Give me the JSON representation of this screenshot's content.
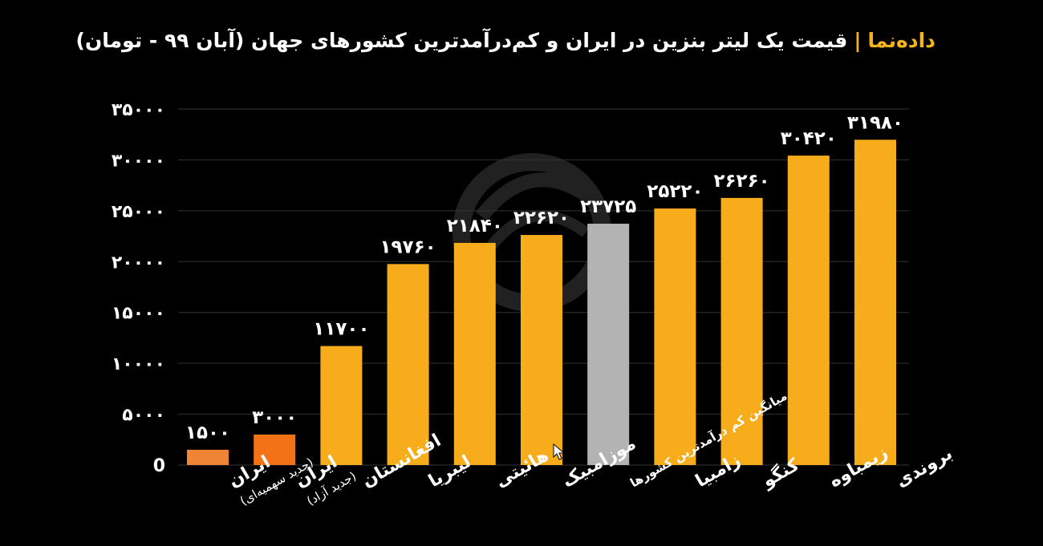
{
  "header": {
    "brand": "داده‌نما",
    "separator": "|",
    "title": "قیمت یک لیتر بنزین در ایران و کم‌درآمدترین کشورهای جهان (آبان ۹۹ - تومان)"
  },
  "watermark": {
    "icon": "logo-watermark-icon"
  },
  "colors": {
    "background": "#000000",
    "bar_main": "#f7ad1b",
    "bar_average": "#b3b3b3",
    "bar_iran_free": "#f47216",
    "bar_iran_quota": "#ef8437",
    "grid": "#333333",
    "brand": "#f4b41a"
  },
  "chart_data": {
    "type": "bar",
    "title": "قیمت یک لیتر بنزین در ایران و کم‌درآمدترین کشورهای جهان (آبان ۹۹ - تومان)",
    "xlabel": "",
    "ylabel": "",
    "ylim": [
      0,
      35000
    ],
    "grid": true,
    "yticks": [
      0,
      5000,
      10000,
      15000,
      20000,
      25000,
      30000,
      35000
    ],
    "ytick_labels": [
      "0",
      "۵۰۰۰",
      "۱۰۰۰۰",
      "۱۵۰۰۰",
      "۲۰۰۰۰",
      "۲۵۰۰۰",
      "۳۰۰۰۰",
      "۳۵۰۰۰"
    ],
    "categories": [
      {
        "name": "ایران",
        "sub": "(جدید سهمیه‌ای)"
      },
      {
        "name": "ایران",
        "sub": "(جدید آزاد)"
      },
      {
        "name": "افغانستان",
        "sub": ""
      },
      {
        "name": "لیبریا",
        "sub": ""
      },
      {
        "name": "هائیتی",
        "sub": ""
      },
      {
        "name": "موزامبیک",
        "sub": ""
      },
      {
        "name": "میانگین کم درآمدترین کشورها",
        "sub": ""
      },
      {
        "name": "زامبیا",
        "sub": ""
      },
      {
        "name": "کنگو",
        "sub": ""
      },
      {
        "name": "زیمباوه",
        "sub": ""
      },
      {
        "name": "بروندی",
        "sub": ""
      }
    ],
    "values": [
      1500,
      3000,
      11700,
      19760,
      21840,
      22620,
      23725,
      25220,
      26260,
      30420,
      31980
    ],
    "value_labels": [
      "۱۵۰۰",
      "۳۰۰۰",
      "۱۱۷۰۰",
      "۱۹۷۶۰",
      "۲۱۸۴۰",
      "۲۲۶۲۰",
      "۲۳۷۲۵",
      "۲۵۲۲۰",
      "۲۶۲۶۰",
      "۳۰۴۲۰",
      "۳۱۹۸۰"
    ],
    "bar_colors": [
      "#ef8437",
      "#f47216",
      "#f7ad1b",
      "#f7ad1b",
      "#f7ad1b",
      "#f7ad1b",
      "#b3b3b3",
      "#f7ad1b",
      "#f7ad1b",
      "#f7ad1b",
      "#f7ad1b"
    ]
  }
}
